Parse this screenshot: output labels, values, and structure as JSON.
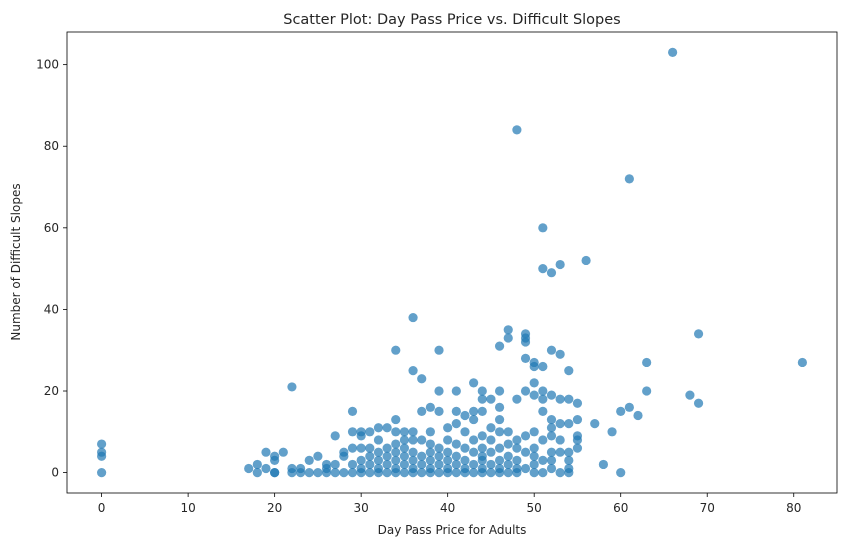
{
  "chart_data": {
    "type": "scatter",
    "title": "Scatter Plot: Day Pass Price vs. Difficult Slopes",
    "xlabel": "Day Pass Price for Adults",
    "ylabel": "Number of Difficult Slopes",
    "xlim": [
      -4,
      85
    ],
    "ylim": [
      -5,
      108
    ],
    "xticks": [
      0,
      10,
      20,
      30,
      40,
      50,
      60,
      70,
      80
    ],
    "yticks": [
      0,
      20,
      40,
      60,
      80,
      100
    ],
    "grid": false,
    "marker_color": "#1f77b4",
    "marker_alpha": 0.7,
    "points": [
      [
        0,
        0
      ],
      [
        0,
        4
      ],
      [
        0,
        5
      ],
      [
        0,
        7
      ],
      [
        17,
        1
      ],
      [
        18,
        0
      ],
      [
        18,
        2
      ],
      [
        19,
        5
      ],
      [
        19,
        1
      ],
      [
        20,
        0
      ],
      [
        20,
        0
      ],
      [
        20,
        3
      ],
      [
        20,
        4
      ],
      [
        21,
        5
      ],
      [
        22,
        0
      ],
      [
        22,
        1
      ],
      [
        22,
        21
      ],
      [
        23,
        0
      ],
      [
        23,
        1
      ],
      [
        24,
        0
      ],
      [
        24,
        3
      ],
      [
        25,
        4
      ],
      [
        25,
        0
      ],
      [
        26,
        0
      ],
      [
        26,
        1
      ],
      [
        26,
        2
      ],
      [
        27,
        0
      ],
      [
        27,
        2
      ],
      [
        27,
        9
      ],
      [
        28,
        0
      ],
      [
        28,
        4
      ],
      [
        28,
        5
      ],
      [
        29,
        0
      ],
      [
        29,
        2
      ],
      [
        29,
        6
      ],
      [
        29,
        10
      ],
      [
        29,
        15
      ],
      [
        30,
        0
      ],
      [
        30,
        1
      ],
      [
        30,
        3
      ],
      [
        30,
        6
      ],
      [
        30,
        9
      ],
      [
        30,
        10
      ],
      [
        31,
        0
      ],
      [
        31,
        2
      ],
      [
        31,
        4
      ],
      [
        31,
        6
      ],
      [
        31,
        10
      ],
      [
        32,
        0
      ],
      [
        32,
        1
      ],
      [
        32,
        3
      ],
      [
        32,
        5
      ],
      [
        32,
        8
      ],
      [
        32,
        11
      ],
      [
        33,
        0
      ],
      [
        33,
        2
      ],
      [
        33,
        4
      ],
      [
        33,
        6
      ],
      [
        33,
        11
      ],
      [
        34,
        0
      ],
      [
        34,
        1
      ],
      [
        34,
        3
      ],
      [
        34,
        5
      ],
      [
        34,
        7
      ],
      [
        34,
        10
      ],
      [
        34,
        13
      ],
      [
        34,
        30
      ],
      [
        35,
        0
      ],
      [
        35,
        2
      ],
      [
        35,
        4
      ],
      [
        35,
        6
      ],
      [
        35,
        8
      ],
      [
        35,
        10
      ],
      [
        36,
        0
      ],
      [
        36,
        1
      ],
      [
        36,
        3
      ],
      [
        36,
        5
      ],
      [
        36,
        8
      ],
      [
        36,
        10
      ],
      [
        36,
        25
      ],
      [
        36,
        38
      ],
      [
        37,
        0
      ],
      [
        37,
        2
      ],
      [
        37,
        4
      ],
      [
        37,
        8
      ],
      [
        37,
        15
      ],
      [
        37,
        23
      ],
      [
        38,
        0
      ],
      [
        38,
        1
      ],
      [
        38,
        3
      ],
      [
        38,
        5
      ],
      [
        38,
        7
      ],
      [
        38,
        10
      ],
      [
        38,
        16
      ],
      [
        39,
        0
      ],
      [
        39,
        2
      ],
      [
        39,
        4
      ],
      [
        39,
        6
      ],
      [
        39,
        15
      ],
      [
        39,
        20
      ],
      [
        39,
        30
      ],
      [
        40,
        0
      ],
      [
        40,
        1
      ],
      [
        40,
        3
      ],
      [
        40,
        5
      ],
      [
        40,
        8
      ],
      [
        40,
        11
      ],
      [
        41,
        0
      ],
      [
        41,
        2
      ],
      [
        41,
        4
      ],
      [
        41,
        7
      ],
      [
        41,
        12
      ],
      [
        41,
        15
      ],
      [
        41,
        20
      ],
      [
        42,
        0
      ],
      [
        42,
        1
      ],
      [
        42,
        3
      ],
      [
        42,
        6
      ],
      [
        42,
        10
      ],
      [
        42,
        14
      ],
      [
        43,
        0
      ],
      [
        43,
        2
      ],
      [
        43,
        5
      ],
      [
        43,
        8
      ],
      [
        43,
        13
      ],
      [
        43,
        15
      ],
      [
        43,
        22
      ],
      [
        44,
        0
      ],
      [
        44,
        1
      ],
      [
        44,
        3
      ],
      [
        44,
        4
      ],
      [
        44,
        6
      ],
      [
        44,
        9
      ],
      [
        44,
        15
      ],
      [
        44,
        18
      ],
      [
        44,
        20
      ],
      [
        45,
        0
      ],
      [
        45,
        2
      ],
      [
        45,
        5
      ],
      [
        45,
        8
      ],
      [
        45,
        11
      ],
      [
        45,
        18
      ],
      [
        46,
        0
      ],
      [
        46,
        1
      ],
      [
        46,
        3
      ],
      [
        46,
        6
      ],
      [
        46,
        10
      ],
      [
        46,
        13
      ],
      [
        46,
        16
      ],
      [
        46,
        20
      ],
      [
        46,
        31
      ],
      [
        47,
        0
      ],
      [
        47,
        2
      ],
      [
        47,
        4
      ],
      [
        47,
        7
      ],
      [
        47,
        10
      ],
      [
        47,
        33
      ],
      [
        47,
        35
      ],
      [
        48,
        0
      ],
      [
        48,
        1
      ],
      [
        48,
        3
      ],
      [
        48,
        6
      ],
      [
        48,
        8
      ],
      [
        48,
        18
      ],
      [
        48,
        84
      ],
      [
        49,
        1
      ],
      [
        49,
        5
      ],
      [
        49,
        9
      ],
      [
        49,
        20
      ],
      [
        49,
        28
      ],
      [
        49,
        32
      ],
      [
        49,
        33
      ],
      [
        49,
        34
      ],
      [
        50,
        0
      ],
      [
        50,
        2
      ],
      [
        50,
        4
      ],
      [
        50,
        6
      ],
      [
        50,
        10
      ],
      [
        50,
        19
      ],
      [
        50,
        22
      ],
      [
        50,
        26
      ],
      [
        50,
        27
      ],
      [
        51,
        0
      ],
      [
        51,
        3
      ],
      [
        51,
        8
      ],
      [
        51,
        15
      ],
      [
        51,
        18
      ],
      [
        51,
        20
      ],
      [
        51,
        26
      ],
      [
        51,
        50
      ],
      [
        51,
        60
      ],
      [
        52,
        1
      ],
      [
        52,
        3
      ],
      [
        52,
        5
      ],
      [
        52,
        9
      ],
      [
        52,
        11
      ],
      [
        52,
        13
      ],
      [
        52,
        19
      ],
      [
        52,
        30
      ],
      [
        52,
        49
      ],
      [
        53,
        0
      ],
      [
        53,
        5
      ],
      [
        53,
        8
      ],
      [
        53,
        12
      ],
      [
        53,
        18
      ],
      [
        53,
        29
      ],
      [
        53,
        51
      ],
      [
        54,
        0
      ],
      [
        54,
        1
      ],
      [
        54,
        3
      ],
      [
        54,
        5
      ],
      [
        54,
        12
      ],
      [
        54,
        18
      ],
      [
        54,
        25
      ],
      [
        55,
        6
      ],
      [
        55,
        8
      ],
      [
        55,
        9
      ],
      [
        55,
        13
      ],
      [
        55,
        17
      ],
      [
        56,
        52
      ],
      [
        57,
        12
      ],
      [
        58,
        2
      ],
      [
        59,
        10
      ],
      [
        60,
        0
      ],
      [
        60,
        15
      ],
      [
        61,
        16
      ],
      [
        61,
        72
      ],
      [
        62,
        14
      ],
      [
        63,
        20
      ],
      [
        63,
        27
      ],
      [
        66,
        103
      ],
      [
        68,
        19
      ],
      [
        69,
        17
      ],
      [
        69,
        34
      ],
      [
        81,
        27
      ]
    ]
  }
}
